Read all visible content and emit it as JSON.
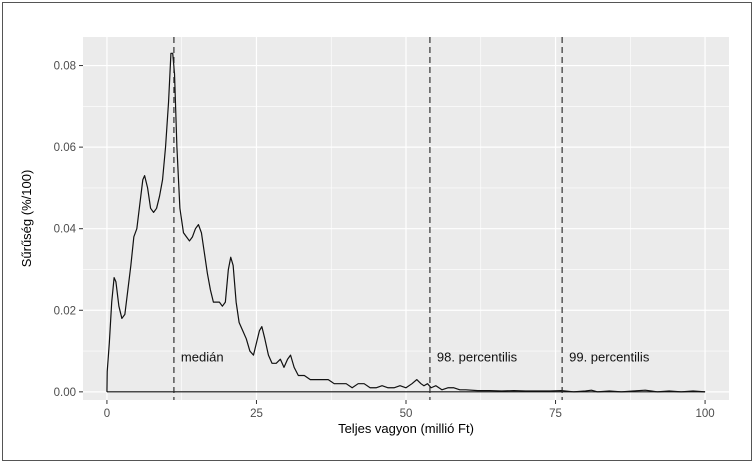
{
  "chart_data": {
    "type": "line",
    "title": "",
    "xlabel": "Teljes vagyon (millió Ft)",
    "ylabel": "Sűrűség (%/100)",
    "xlim": [
      -4,
      104
    ],
    "ylim": [
      -0.002,
      0.087
    ],
    "x_ticks": [
      0,
      25,
      50,
      75,
      100
    ],
    "x_tick_labels": [
      "0",
      "25",
      "50",
      "75",
      "100"
    ],
    "y_ticks": [
      0.0,
      0.02,
      0.04,
      0.06,
      0.08
    ],
    "y_tick_labels": [
      "0.00",
      "0.02",
      "0.04",
      "0.06",
      "0.08"
    ],
    "grid": true,
    "background": "#ebebeb",
    "gridline_color": "#ffffff",
    "line_color": "#111111",
    "series": [
      {
        "points": [
          [
            0,
            0.0
          ],
          [
            0.05,
            0.005
          ],
          [
            0.4,
            0.012
          ],
          [
            0.8,
            0.022
          ],
          [
            1.2,
            0.028
          ],
          [
            1.5,
            0.027
          ],
          [
            2.0,
            0.021
          ],
          [
            2.5,
            0.018
          ],
          [
            3.0,
            0.019
          ],
          [
            3.5,
            0.025
          ],
          [
            4.0,
            0.031
          ],
          [
            4.5,
            0.038
          ],
          [
            5.0,
            0.04
          ],
          [
            5.5,
            0.046
          ],
          [
            6.0,
            0.052
          ],
          [
            6.3,
            0.053
          ],
          [
            6.8,
            0.05
          ],
          [
            7.3,
            0.045
          ],
          [
            7.8,
            0.044
          ],
          [
            8.3,
            0.045
          ],
          [
            8.8,
            0.048
          ],
          [
            9.3,
            0.052
          ],
          [
            9.8,
            0.06
          ],
          [
            10.3,
            0.071
          ],
          [
            10.7,
            0.083
          ],
          [
            11.0,
            0.083
          ],
          [
            11.3,
            0.078
          ],
          [
            11.7,
            0.06
          ],
          [
            12.2,
            0.045
          ],
          [
            12.8,
            0.039
          ],
          [
            13.3,
            0.038
          ],
          [
            13.8,
            0.037
          ],
          [
            14.3,
            0.038
          ],
          [
            14.8,
            0.04
          ],
          [
            15.3,
            0.041
          ],
          [
            15.8,
            0.039
          ],
          [
            16.3,
            0.034
          ],
          [
            16.8,
            0.029
          ],
          [
            17.3,
            0.025
          ],
          [
            17.8,
            0.022
          ],
          [
            18.3,
            0.022
          ],
          [
            18.8,
            0.022
          ],
          [
            19.3,
            0.021
          ],
          [
            19.8,
            0.022
          ],
          [
            20.3,
            0.03
          ],
          [
            20.7,
            0.033
          ],
          [
            21.1,
            0.031
          ],
          [
            21.6,
            0.022
          ],
          [
            22.1,
            0.017
          ],
          [
            22.7,
            0.015
          ],
          [
            23.3,
            0.013
          ],
          [
            23.9,
            0.01
          ],
          [
            24.5,
            0.009
          ],
          [
            25.0,
            0.012
          ],
          [
            25.5,
            0.015
          ],
          [
            25.9,
            0.016
          ],
          [
            26.4,
            0.013
          ],
          [
            27.0,
            0.009
          ],
          [
            27.6,
            0.007
          ],
          [
            28.3,
            0.007
          ],
          [
            29.0,
            0.008
          ],
          [
            29.6,
            0.006
          ],
          [
            30.2,
            0.008
          ],
          [
            30.7,
            0.009
          ],
          [
            31.3,
            0.006
          ],
          [
            32.0,
            0.004
          ],
          [
            33.0,
            0.004
          ],
          [
            34.0,
            0.003
          ],
          [
            35.0,
            0.003
          ],
          [
            36.0,
            0.003
          ],
          [
            37.0,
            0.003
          ],
          [
            38.0,
            0.002
          ],
          [
            39.0,
            0.002
          ],
          [
            40.0,
            0.002
          ],
          [
            41.0,
            0.001
          ],
          [
            42.0,
            0.002
          ],
          [
            43.0,
            0.002
          ],
          [
            44.0,
            0.001
          ],
          [
            45.0,
            0.001
          ],
          [
            46.0,
            0.0015
          ],
          [
            47.0,
            0.001
          ],
          [
            48.0,
            0.001
          ],
          [
            49.0,
            0.0015
          ],
          [
            50.0,
            0.001
          ],
          [
            51.0,
            0.002
          ],
          [
            51.8,
            0.003
          ],
          [
            52.5,
            0.002
          ],
          [
            53.0,
            0.0015
          ],
          [
            53.6,
            0.002
          ],
          [
            54.2,
            0.001
          ],
          [
            55.0,
            0.0015
          ],
          [
            56.0,
            0.0005
          ],
          [
            57.0,
            0.001
          ],
          [
            58.0,
            0.001
          ],
          [
            59.0,
            0.0005
          ],
          [
            60.0,
            0.0005
          ],
          [
            62.0,
            0.0003
          ],
          [
            64.0,
            0.0003
          ],
          [
            66.0,
            0.0002
          ],
          [
            68.0,
            0.0003
          ],
          [
            70.0,
            0.0002
          ],
          [
            72.0,
            0.0002
          ],
          [
            74.0,
            0.0002
          ],
          [
            76.0,
            0.0003
          ],
          [
            78.0,
            0.0
          ],
          [
            80.0,
            0.0002
          ],
          [
            81.0,
            0.0004
          ],
          [
            82.0,
            0.0
          ],
          [
            84.0,
            0.0002
          ],
          [
            86.0,
            0.0
          ],
          [
            88.0,
            0.0002
          ],
          [
            90.0,
            0.0004
          ],
          [
            91.0,
            0.0002
          ],
          [
            92.0,
            0.0
          ],
          [
            94.0,
            0.0002
          ],
          [
            96.0,
            0.0
          ],
          [
            98.0,
            0.0002
          ],
          [
            100.0,
            0.0
          ]
        ]
      }
    ],
    "vlines": [
      {
        "x": 11.2,
        "label": "medián"
      },
      {
        "x": 54.0,
        "label": "98. percentilis"
      },
      {
        "x": 76.1,
        "label": "99. percentilis"
      }
    ],
    "hline": {
      "y": 0.0
    }
  }
}
